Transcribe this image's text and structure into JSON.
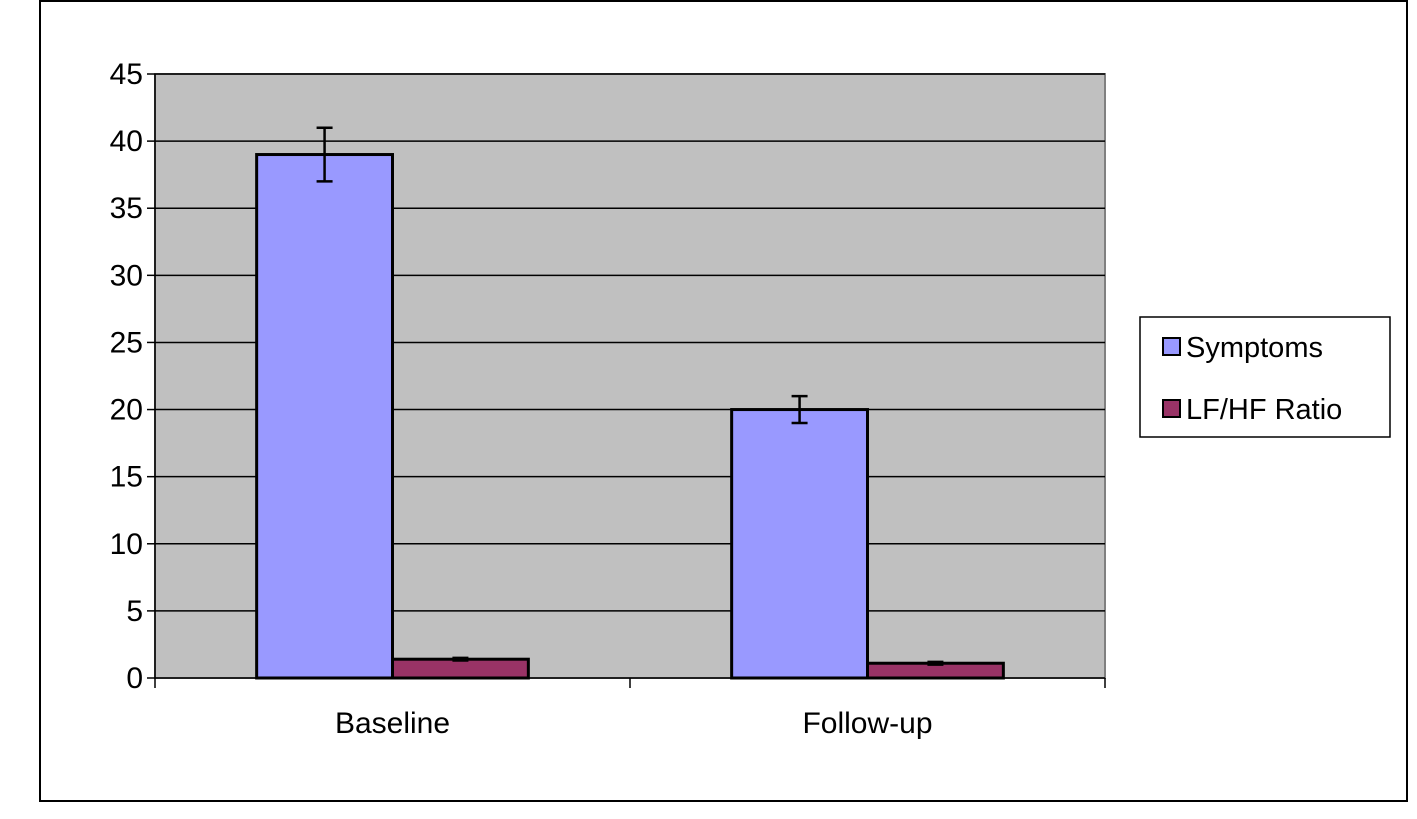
{
  "chart_data": {
    "type": "bar",
    "categories": [
      "Baseline",
      "Follow-up"
    ],
    "series": [
      {
        "name": "Symptoms",
        "values": [
          39,
          20
        ],
        "errors": [
          2,
          1
        ],
        "color": "#9999ff"
      },
      {
        "name": "LF/HF Ratio",
        "values": [
          1.4,
          1.1
        ],
        "errors": [
          0.1,
          0.1
        ],
        "color": "#993366"
      }
    ],
    "ylim": [
      0,
      45
    ],
    "yticks": [
      "0",
      "5",
      "10",
      "15",
      "20",
      "25",
      "30",
      "35",
      "40",
      "45"
    ],
    "grid": true,
    "plot_background": "#c0c0c0",
    "legend_position": "right"
  }
}
